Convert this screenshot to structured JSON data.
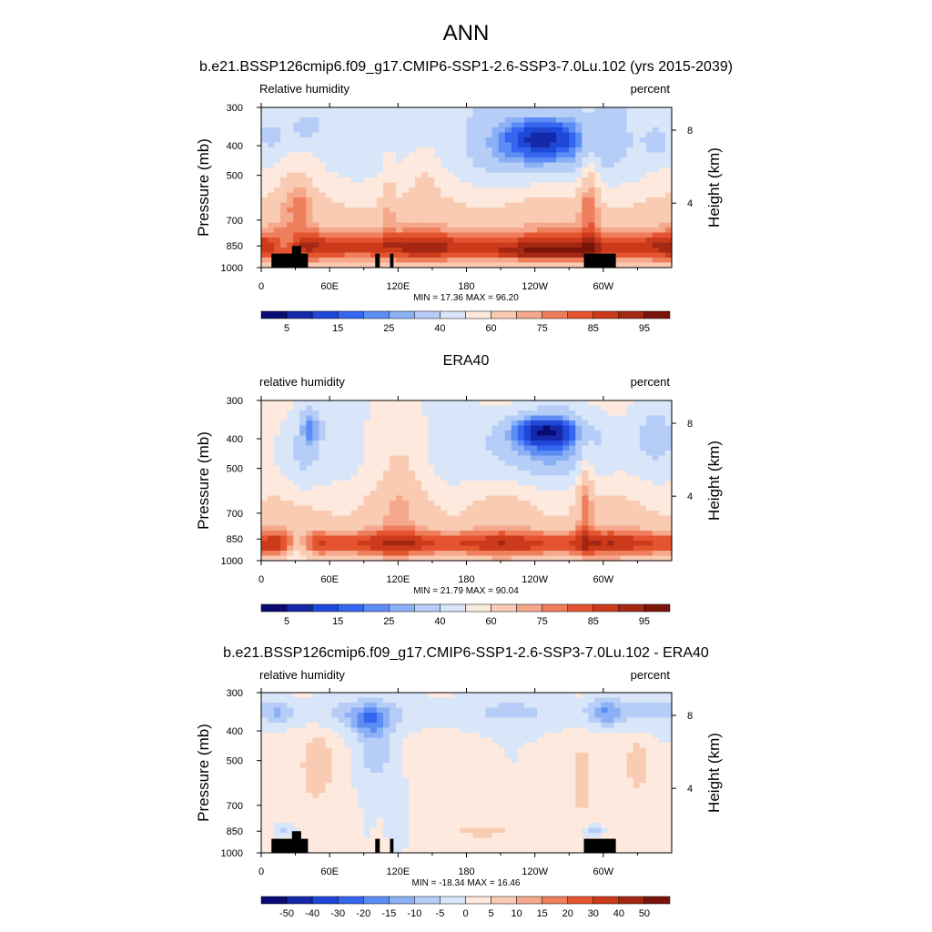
{
  "figure": {
    "title": "ANN"
  },
  "chart_data": [
    {
      "type": "heatmap",
      "title": "b.e21.BSSP126cmip6.f09_g17.CMIP6-SSP1-2.6-SSP3-7.0Lu.102 (yrs 2015-2039)",
      "left_label": "Relative humidity",
      "right_label": "percent",
      "ylabel": "Pressure (mb)",
      "ylabel_right": "Height (km)",
      "y_ticks": [
        300,
        400,
        500,
        700,
        850,
        1000
      ],
      "y_ticks_right": [
        8,
        4
      ],
      "x_ticks": [
        "0",
        "60E",
        "120E",
        "180",
        "120W",
        "60W"
      ],
      "x_tick_lon": [
        0,
        60,
        120,
        180,
        240,
        300
      ],
      "xlim": [
        0,
        360
      ],
      "ylim": [
        1000,
        300
      ],
      "stats": "MIN =  17.36  MAX =  96.20",
      "min": 17.36,
      "max": 96.2,
      "levels": [
        5,
        10,
        15,
        20,
        25,
        30,
        40,
        50,
        60,
        70,
        75,
        80,
        85,
        90,
        95
      ],
      "colorbar_labels": [
        "5",
        "15",
        "25",
        "40",
        "60",
        "75",
        "85",
        "95"
      ],
      "colors": [
        "#0a0a75",
        "#1428a8",
        "#1f48d8",
        "#3466f0",
        "#5c8df5",
        "#8cb0f5",
        "#b6cdf7",
        "#d9e6f9",
        "#fde9dd",
        "#f9cbb3",
        "#f5a88c",
        "#ef7f5c",
        "#e4542f",
        "#cc3a1c",
        "#a32713",
        "#7a140a"
      ]
    },
    {
      "type": "heatmap",
      "title": "ERA40",
      "left_label": "relative humidity",
      "right_label": "percent",
      "ylabel": "Pressure (mb)",
      "ylabel_right": "Height (km)",
      "y_ticks": [
        300,
        400,
        500,
        700,
        850,
        1000
      ],
      "y_ticks_right": [
        8,
        4
      ],
      "x_ticks": [
        "0",
        "60E",
        "120E",
        "180",
        "120W",
        "60W"
      ],
      "x_tick_lon": [
        0,
        60,
        120,
        180,
        240,
        300
      ],
      "xlim": [
        0,
        360
      ],
      "ylim": [
        1000,
        300
      ],
      "stats": "MIN =  21.79  MAX =  90.04",
      "min": 21.79,
      "max": 90.04,
      "levels": [
        5,
        10,
        15,
        20,
        25,
        30,
        40,
        50,
        60,
        70,
        75,
        80,
        85,
        90,
        95
      ],
      "colorbar_labels": [
        "5",
        "15",
        "25",
        "40",
        "60",
        "75",
        "85",
        "95"
      ],
      "colors": [
        "#0a0a75",
        "#1428a8",
        "#1f48d8",
        "#3466f0",
        "#5c8df5",
        "#8cb0f5",
        "#b6cdf7",
        "#d9e6f9",
        "#fde9dd",
        "#f9cbb3",
        "#f5a88c",
        "#ef7f5c",
        "#e4542f",
        "#cc3a1c",
        "#a32713",
        "#7a140a"
      ]
    },
    {
      "type": "heatmap",
      "title": "b.e21.BSSP126cmip6.f09_g17.CMIP6-SSP1-2.6-SSP3-7.0Lu.102 - ERA40",
      "left_label": "relative humidity",
      "right_label": "percent",
      "ylabel": "Pressure (mb)",
      "ylabel_right": "Height (km)",
      "y_ticks": [
        300,
        400,
        500,
        700,
        850,
        1000
      ],
      "y_ticks_right": [
        8,
        4
      ],
      "x_ticks": [
        "0",
        "60E",
        "120E",
        "180",
        "120W",
        "60W"
      ],
      "x_tick_lon": [
        0,
        60,
        120,
        180,
        240,
        300
      ],
      "xlim": [
        0,
        360
      ],
      "ylim": [
        1000,
        300
      ],
      "stats": "MIN = -18.34  MAX =  16.46",
      "min": -18.34,
      "max": 16.46,
      "levels": [
        -50,
        -40,
        -30,
        -20,
        -15,
        -10,
        -5,
        0,
        5,
        10,
        15,
        20,
        30,
        40,
        50
      ],
      "colorbar_labels": [
        "-50",
        "-40",
        "-30",
        "-20",
        "-15",
        "-10",
        "-5",
        "0",
        "5",
        "10",
        "15",
        "20",
        "30",
        "40",
        "50"
      ],
      "colors": [
        "#0a0a75",
        "#1428a8",
        "#1f48d8",
        "#3466f0",
        "#5c8df5",
        "#8cb0f5",
        "#b6cdf7",
        "#d9e6f9",
        "#fde9dd",
        "#f9cbb3",
        "#f5a88c",
        "#ef7f5c",
        "#e4542f",
        "#cc3a1c",
        "#a32713",
        "#7a140a"
      ]
    }
  ]
}
